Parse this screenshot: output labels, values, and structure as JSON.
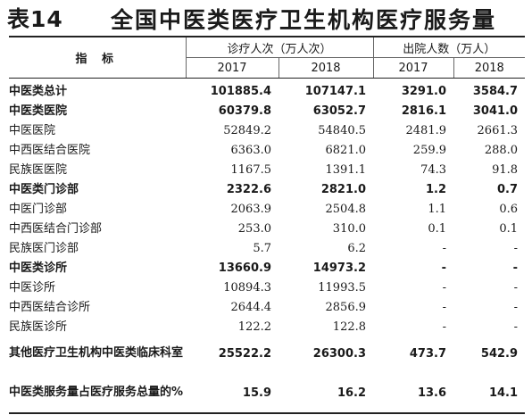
{
  "title": {
    "number": "表14",
    "text": "全国中医类医疗卫生机构医疗服务量"
  },
  "table": {
    "header": {
      "index_label": "指  标",
      "groups": [
        "诊疗人次（万人次）",
        "出院人数（万人）"
      ],
      "years": [
        "2017",
        "2018",
        "2017",
        "2018"
      ]
    },
    "rows": [
      {
        "label": "中医类总计",
        "bold": true,
        "indent": 0,
        "values": [
          "101885.4",
          "107147.1",
          "3291.0",
          "3584.7"
        ]
      },
      {
        "label": "中医类医院",
        "bold": true,
        "indent": 1,
        "values": [
          "60379.8",
          "63052.7",
          "2816.1",
          "3041.0"
        ]
      },
      {
        "label": "中医医院",
        "bold": false,
        "indent": 3,
        "values": [
          "52849.2",
          "54840.5",
          "2481.9",
          "2661.3"
        ]
      },
      {
        "label": "中西医结合医院",
        "bold": false,
        "indent": 2,
        "values": [
          "6363.0",
          "6821.0",
          "259.9",
          "288.0"
        ]
      },
      {
        "label": "民族医医院",
        "bold": false,
        "indent": 2,
        "values": [
          "1167.5",
          "1391.1",
          "74.3",
          "91.8"
        ]
      },
      {
        "label": "中医类门诊部",
        "bold": true,
        "indent": 2,
        "values": [
          "2322.6",
          "2821.0",
          "1.2",
          "0.7"
        ]
      },
      {
        "label": "中医门诊部",
        "bold": false,
        "indent": 2,
        "values": [
          "2063.9",
          "2504.8",
          "1.1",
          "0.6"
        ]
      },
      {
        "label": "中西医结合门诊部",
        "bold": false,
        "indent": 4,
        "values": [
          "253.0",
          "310.0",
          "0.1",
          "0.1"
        ]
      },
      {
        "label": "民族医门诊部",
        "bold": false,
        "indent": 3,
        "values": [
          "5.7",
          "6.2",
          "-",
          "-"
        ]
      },
      {
        "label": "中医类诊所",
        "bold": true,
        "indent": 1,
        "values": [
          "13660.9",
          "14973.2",
          "-",
          "-"
        ]
      },
      {
        "label": "中医诊所",
        "bold": false,
        "indent": 3,
        "values": [
          "10894.3",
          "11993.5",
          "-",
          "-"
        ]
      },
      {
        "label": "中西医结合诊所",
        "bold": false,
        "indent": 2,
        "values": [
          "2644.4",
          "2856.9",
          "-",
          "-"
        ]
      },
      {
        "label": "民族医诊所",
        "bold": false,
        "indent": 2,
        "values": [
          "122.2",
          "122.8",
          "-",
          "-"
        ]
      },
      {
        "label": "其他医疗卫生机构中医类临床科室",
        "bold": true,
        "indent": 0,
        "tall": true,
        "values": [
          "25522.2",
          "26300.3",
          "473.7",
          "542.9"
        ]
      },
      {
        "label": "中医类服务量占医疗服务总量的%",
        "bold": true,
        "indent": 0,
        "tall": true,
        "values": [
          "15.9",
          "16.2",
          "13.6",
          "14.1"
        ]
      }
    ]
  }
}
